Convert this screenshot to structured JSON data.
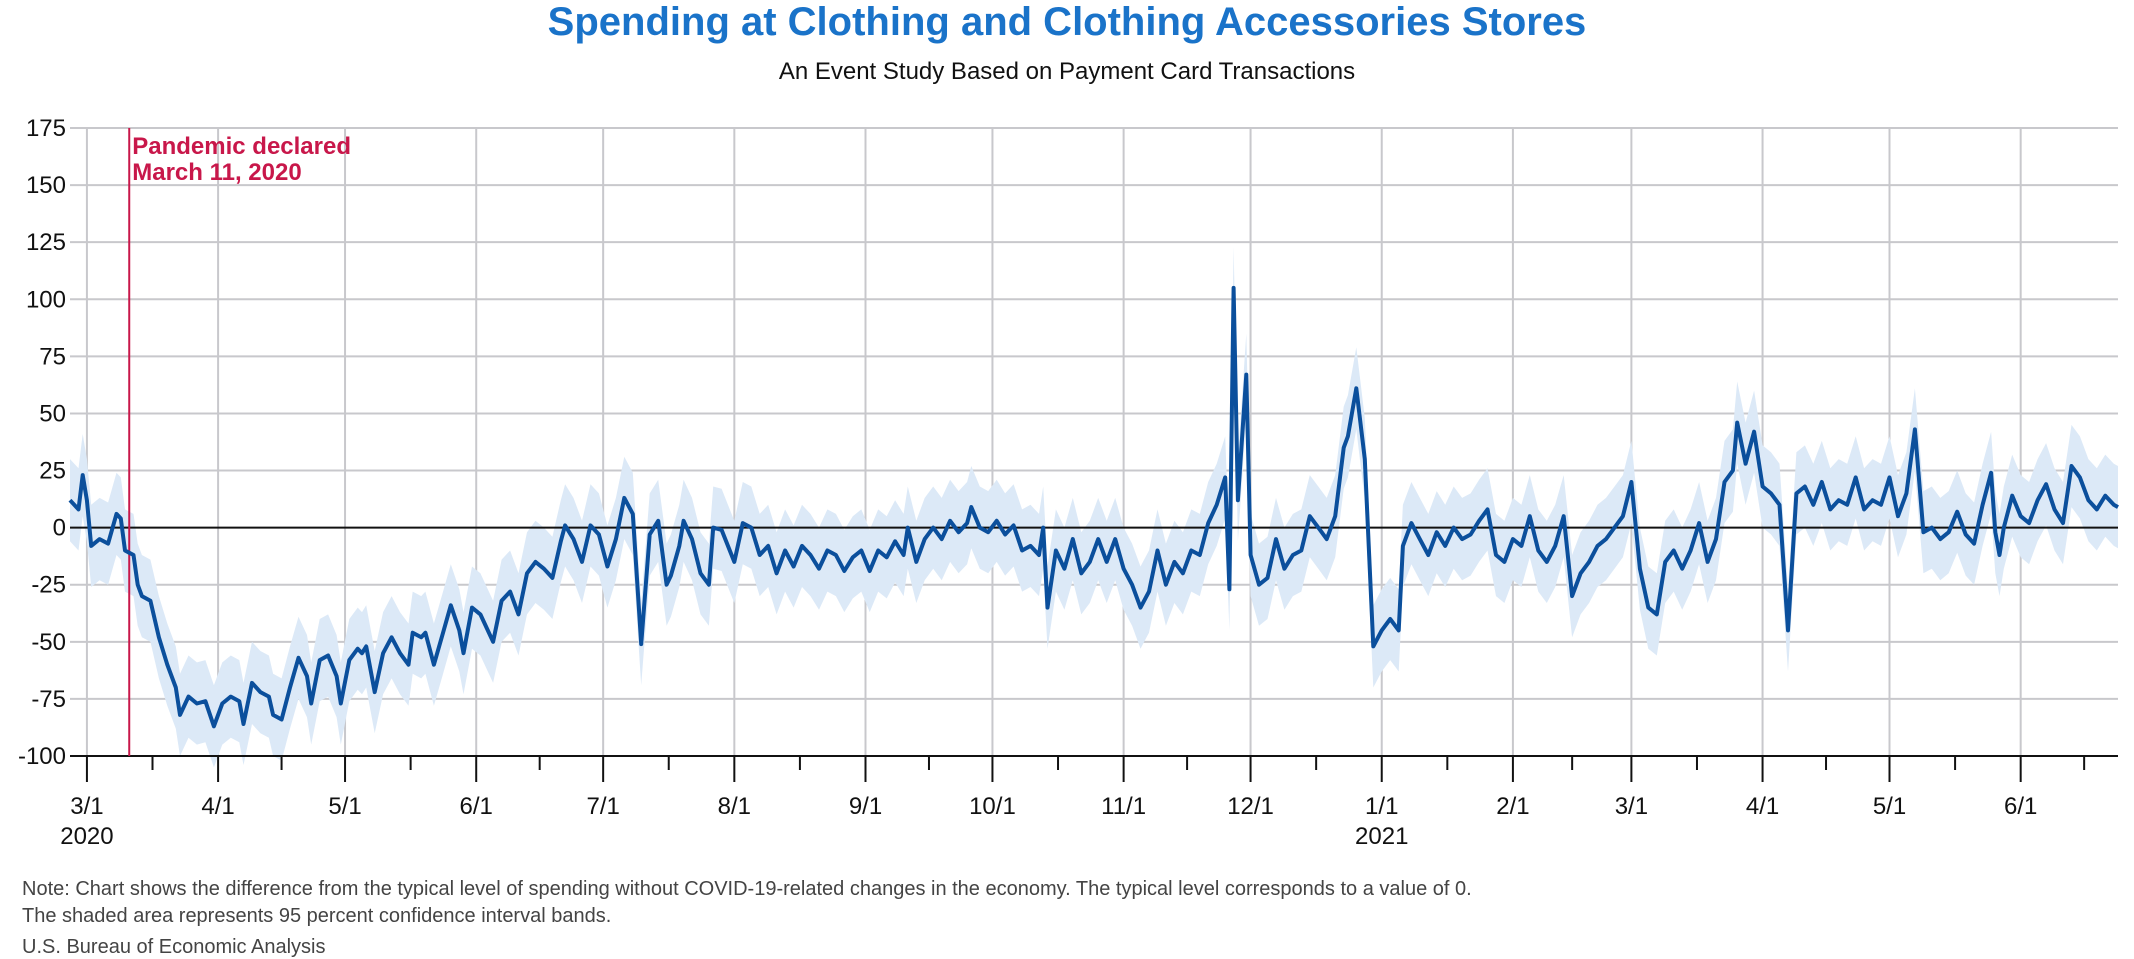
{
  "title": "Spending at Clothing and Clothing Accessories Stores",
  "subtitle": "An Event Study Based on Payment Card Transactions",
  "note_line1": "Note: Chart shows the difference from the typical level of spending without COVID-19-related changes in the economy. The typical level corresponds to a value of 0.",
  "note_line2": "The shaded area represents 95 percent confidence interval bands.",
  "source": "U.S. Bureau of Economic Analysis",
  "colors": {
    "line": "#0b4f9c",
    "band": "#dce9f7",
    "event": "#c8174a",
    "grid": "#c8c8cc",
    "title": "#1a73c9"
  },
  "chart_data": {
    "type": "line",
    "ylim": [
      -100,
      175
    ],
    "yticks": [
      175,
      150,
      125,
      100,
      75,
      50,
      25,
      0,
      -25,
      -50,
      -75,
      -100
    ],
    "x_range": [
      "2020-02-26",
      "2021-06-24"
    ],
    "xtick_labels": [
      {
        "date": "2020-03-01",
        "label": "3/1",
        "year": "2020"
      },
      {
        "date": "2020-04-01",
        "label": "4/1"
      },
      {
        "date": "2020-05-01",
        "label": "5/1"
      },
      {
        "date": "2020-06-01",
        "label": "6/1"
      },
      {
        "date": "2020-07-01",
        "label": "7/1"
      },
      {
        "date": "2020-08-01",
        "label": "8/1"
      },
      {
        "date": "2020-09-01",
        "label": "9/1"
      },
      {
        "date": "2020-10-01",
        "label": "10/1"
      },
      {
        "date": "2020-11-01",
        "label": "11/1"
      },
      {
        "date": "2020-12-01",
        "label": "12/1"
      },
      {
        "date": "2021-01-01",
        "label": "1/1",
        "year": "2021"
      },
      {
        "date": "2021-02-01",
        "label": "2/1"
      },
      {
        "date": "2021-03-01",
        "label": "3/1"
      },
      {
        "date": "2021-04-01",
        "label": "4/1"
      },
      {
        "date": "2021-05-01",
        "label": "5/1"
      },
      {
        "date": "2021-06-01",
        "label": "6/1"
      }
    ],
    "event": {
      "date": "2020-03-11",
      "label_line1": "Pandemic declared",
      "label_line2": "March 11, 2020"
    },
    "band_width": 18,
    "series": [
      {
        "points": [
          [
            "2020-02-26",
            12
          ],
          [
            "2020-02-28",
            8
          ],
          [
            "2020-02-29",
            23
          ],
          [
            "2020-03-01",
            12
          ],
          [
            "2020-03-02",
            -8
          ],
          [
            "2020-03-04",
            -5
          ],
          [
            "2020-03-06",
            -7
          ],
          [
            "2020-03-08",
            6
          ],
          [
            "2020-03-09",
            4
          ],
          [
            "2020-03-10",
            -10
          ],
          [
            "2020-03-12",
            -12
          ],
          [
            "2020-03-13",
            -25
          ],
          [
            "2020-03-14",
            -30
          ],
          [
            "2020-03-16",
            -32
          ],
          [
            "2020-03-18",
            -48
          ],
          [
            "2020-03-20",
            -60
          ],
          [
            "2020-03-22",
            -70
          ],
          [
            "2020-03-23",
            -82
          ],
          [
            "2020-03-25",
            -74
          ],
          [
            "2020-03-27",
            -77
          ],
          [
            "2020-03-29",
            -76
          ],
          [
            "2020-03-31",
            -87
          ],
          [
            "2020-04-02",
            -77
          ],
          [
            "2020-04-04",
            -74
          ],
          [
            "2020-04-06",
            -76
          ],
          [
            "2020-04-07",
            -86
          ],
          [
            "2020-04-09",
            -68
          ],
          [
            "2020-04-11",
            -72
          ],
          [
            "2020-04-13",
            -74
          ],
          [
            "2020-04-14",
            -82
          ],
          [
            "2020-04-16",
            -84
          ],
          [
            "2020-04-18",
            -70
          ],
          [
            "2020-04-20",
            -57
          ],
          [
            "2020-04-22",
            -65
          ],
          [
            "2020-04-23",
            -77
          ],
          [
            "2020-04-25",
            -58
          ],
          [
            "2020-04-27",
            -56
          ],
          [
            "2020-04-29",
            -65
          ],
          [
            "2020-04-30",
            -77
          ],
          [
            "2020-05-02",
            -58
          ],
          [
            "2020-05-04",
            -53
          ],
          [
            "2020-05-05",
            -55
          ],
          [
            "2020-05-06",
            -52
          ],
          [
            "2020-05-08",
            -72
          ],
          [
            "2020-05-10",
            -55
          ],
          [
            "2020-05-12",
            -48
          ],
          [
            "2020-05-14",
            -55
          ],
          [
            "2020-05-16",
            -60
          ],
          [
            "2020-05-17",
            -46
          ],
          [
            "2020-05-19",
            -48
          ],
          [
            "2020-05-20",
            -46
          ],
          [
            "2020-05-22",
            -60
          ],
          [
            "2020-05-24",
            -47
          ],
          [
            "2020-05-26",
            -34
          ],
          [
            "2020-05-28",
            -45
          ],
          [
            "2020-05-29",
            -55
          ],
          [
            "2020-05-31",
            -35
          ],
          [
            "2020-06-02",
            -38
          ],
          [
            "2020-06-05",
            -50
          ],
          [
            "2020-06-07",
            -32
          ],
          [
            "2020-06-09",
            -28
          ],
          [
            "2020-06-11",
            -38
          ],
          [
            "2020-06-13",
            -20
          ],
          [
            "2020-06-15",
            -15
          ],
          [
            "2020-06-17",
            -18
          ],
          [
            "2020-06-19",
            -22
          ],
          [
            "2020-06-21",
            -6
          ],
          [
            "2020-06-22",
            1
          ],
          [
            "2020-06-24",
            -5
          ],
          [
            "2020-06-26",
            -15
          ],
          [
            "2020-06-28",
            1
          ],
          [
            "2020-06-30",
            -3
          ],
          [
            "2020-07-02",
            -17
          ],
          [
            "2020-07-04",
            -5
          ],
          [
            "2020-07-06",
            13
          ],
          [
            "2020-07-08",
            6
          ],
          [
            "2020-07-10",
            -51
          ],
          [
            "2020-07-12",
            -3
          ],
          [
            "2020-07-14",
            3
          ],
          [
            "2020-07-16",
            -25
          ],
          [
            "2020-07-17",
            -21
          ],
          [
            "2020-07-19",
            -8
          ],
          [
            "2020-07-20",
            3
          ],
          [
            "2020-07-22",
            -5
          ],
          [
            "2020-07-24",
            -20
          ],
          [
            "2020-07-26",
            -25
          ],
          [
            "2020-07-27",
            0
          ],
          [
            "2020-07-29",
            -1
          ],
          [
            "2020-08-01",
            -15
          ],
          [
            "2020-08-03",
            2
          ],
          [
            "2020-08-05",
            0
          ],
          [
            "2020-08-07",
            -12
          ],
          [
            "2020-08-09",
            -8
          ],
          [
            "2020-08-11",
            -20
          ],
          [
            "2020-08-13",
            -10
          ],
          [
            "2020-08-15",
            -17
          ],
          [
            "2020-08-17",
            -8
          ],
          [
            "2020-08-19",
            -12
          ],
          [
            "2020-08-21",
            -18
          ],
          [
            "2020-08-23",
            -10
          ],
          [
            "2020-08-25",
            -12
          ],
          [
            "2020-08-27",
            -19
          ],
          [
            "2020-08-29",
            -13
          ],
          [
            "2020-08-31",
            -10
          ],
          [
            "2020-09-02",
            -19
          ],
          [
            "2020-09-04",
            -10
          ],
          [
            "2020-09-06",
            -13
          ],
          [
            "2020-09-08",
            -6
          ],
          [
            "2020-09-10",
            -12
          ],
          [
            "2020-09-11",
            0
          ],
          [
            "2020-09-13",
            -15
          ],
          [
            "2020-09-15",
            -5
          ],
          [
            "2020-09-17",
            0
          ],
          [
            "2020-09-19",
            -5
          ],
          [
            "2020-09-21",
            3
          ],
          [
            "2020-09-23",
            -2
          ],
          [
            "2020-09-25",
            2
          ],
          [
            "2020-09-26",
            9
          ],
          [
            "2020-09-28",
            0
          ],
          [
            "2020-09-30",
            -2
          ],
          [
            "2020-10-02",
            3
          ],
          [
            "2020-10-04",
            -3
          ],
          [
            "2020-10-06",
            1
          ],
          [
            "2020-10-08",
            -10
          ],
          [
            "2020-10-10",
            -8
          ],
          [
            "2020-10-12",
            -12
          ],
          [
            "2020-10-13",
            0
          ],
          [
            "2020-10-14",
            -35
          ],
          [
            "2020-10-16",
            -10
          ],
          [
            "2020-10-18",
            -18
          ],
          [
            "2020-10-20",
            -5
          ],
          [
            "2020-10-22",
            -20
          ],
          [
            "2020-10-24",
            -15
          ],
          [
            "2020-10-26",
            -5
          ],
          [
            "2020-10-28",
            -15
          ],
          [
            "2020-10-30",
            -5
          ],
          [
            "2020-11-01",
            -18
          ],
          [
            "2020-11-03",
            -25
          ],
          [
            "2020-11-05",
            -35
          ],
          [
            "2020-11-07",
            -28
          ],
          [
            "2020-11-09",
            -10
          ],
          [
            "2020-11-11",
            -25
          ],
          [
            "2020-11-13",
            -15
          ],
          [
            "2020-11-15",
            -20
          ],
          [
            "2020-11-17",
            -10
          ],
          [
            "2020-11-19",
            -12
          ],
          [
            "2020-11-21",
            2
          ],
          [
            "2020-11-23",
            10
          ],
          [
            "2020-11-25",
            22
          ],
          [
            "2020-11-26",
            -27
          ],
          [
            "2020-11-27",
            105
          ],
          [
            "2020-11-28",
            12
          ],
          [
            "2020-11-30",
            67
          ],
          [
            "2020-12-01",
            -12
          ],
          [
            "2020-12-03",
            -25
          ],
          [
            "2020-12-05",
            -22
          ],
          [
            "2020-12-07",
            -5
          ],
          [
            "2020-12-09",
            -18
          ],
          [
            "2020-12-11",
            -12
          ],
          [
            "2020-12-13",
            -10
          ],
          [
            "2020-12-15",
            5
          ],
          [
            "2020-12-17",
            0
          ],
          [
            "2020-12-19",
            -5
          ],
          [
            "2020-12-21",
            5
          ],
          [
            "2020-12-23",
            35
          ],
          [
            "2020-12-24",
            40
          ],
          [
            "2020-12-26",
            61
          ],
          [
            "2020-12-28",
            30
          ],
          [
            "2020-12-30",
            -52
          ],
          [
            "2021-01-01",
            -45
          ],
          [
            "2021-01-03",
            -40
          ],
          [
            "2021-01-05",
            -45
          ],
          [
            "2021-01-06",
            -8
          ],
          [
            "2021-01-08",
            2
          ],
          [
            "2021-01-10",
            -5
          ],
          [
            "2021-01-12",
            -12
          ],
          [
            "2021-01-14",
            -2
          ],
          [
            "2021-01-16",
            -8
          ],
          [
            "2021-01-18",
            0
          ],
          [
            "2021-01-20",
            -5
          ],
          [
            "2021-01-22",
            -3
          ],
          [
            "2021-01-24",
            3
          ],
          [
            "2021-01-26",
            8
          ],
          [
            "2021-01-28",
            -12
          ],
          [
            "2021-01-30",
            -15
          ],
          [
            "2021-02-01",
            -5
          ],
          [
            "2021-02-03",
            -8
          ],
          [
            "2021-02-05",
            5
          ],
          [
            "2021-02-07",
            -10
          ],
          [
            "2021-02-09",
            -15
          ],
          [
            "2021-02-11",
            -8
          ],
          [
            "2021-02-13",
            5
          ],
          [
            "2021-02-15",
            -30
          ],
          [
            "2021-02-17",
            -20
          ],
          [
            "2021-02-19",
            -15
          ],
          [
            "2021-02-21",
            -8
          ],
          [
            "2021-02-23",
            -5
          ],
          [
            "2021-02-25",
            0
          ],
          [
            "2021-02-27",
            5
          ],
          [
            "2021-03-01",
            20
          ],
          [
            "2021-03-03",
            -18
          ],
          [
            "2021-03-05",
            -35
          ],
          [
            "2021-03-07",
            -38
          ],
          [
            "2021-03-09",
            -15
          ],
          [
            "2021-03-11",
            -10
          ],
          [
            "2021-03-13",
            -18
          ],
          [
            "2021-03-15",
            -10
          ],
          [
            "2021-03-17",
            2
          ],
          [
            "2021-03-19",
            -15
          ],
          [
            "2021-03-21",
            -5
          ],
          [
            "2021-03-23",
            20
          ],
          [
            "2021-03-25",
            25
          ],
          [
            "2021-03-26",
            46
          ],
          [
            "2021-03-28",
            28
          ],
          [
            "2021-03-30",
            42
          ],
          [
            "2021-04-01",
            18
          ],
          [
            "2021-04-03",
            15
          ],
          [
            "2021-04-05",
            10
          ],
          [
            "2021-04-07",
            -45
          ],
          [
            "2021-04-09",
            15
          ],
          [
            "2021-04-11",
            18
          ],
          [
            "2021-04-13",
            10
          ],
          [
            "2021-04-15",
            20
          ],
          [
            "2021-04-17",
            8
          ],
          [
            "2021-04-19",
            12
          ],
          [
            "2021-04-21",
            10
          ],
          [
            "2021-04-23",
            22
          ],
          [
            "2021-04-25",
            8
          ],
          [
            "2021-04-27",
            12
          ],
          [
            "2021-04-29",
            10
          ],
          [
            "2021-05-01",
            22
          ],
          [
            "2021-05-03",
            5
          ],
          [
            "2021-05-05",
            15
          ],
          [
            "2021-05-07",
            43
          ],
          [
            "2021-05-09",
            -2
          ],
          [
            "2021-05-11",
            0
          ],
          [
            "2021-05-13",
            -5
          ],
          [
            "2021-05-15",
            -2
          ],
          [
            "2021-05-17",
            7
          ],
          [
            "2021-05-19",
            -3
          ],
          [
            "2021-05-21",
            -7
          ],
          [
            "2021-05-23",
            10
          ],
          [
            "2021-05-25",
            24
          ],
          [
            "2021-05-26",
            -2
          ],
          [
            "2021-05-27",
            -12
          ],
          [
            "2021-05-28",
            0
          ],
          [
            "2021-05-30",
            14
          ],
          [
            "2021-06-01",
            5
          ],
          [
            "2021-06-03",
            2
          ],
          [
            "2021-06-05",
            12
          ],
          [
            "2021-06-07",
            19
          ],
          [
            "2021-06-09",
            8
          ],
          [
            "2021-06-11",
            2
          ],
          [
            "2021-06-13",
            27
          ],
          [
            "2021-06-15",
            22
          ],
          [
            "2021-06-17",
            12
          ],
          [
            "2021-06-19",
            8
          ],
          [
            "2021-06-21",
            14
          ],
          [
            "2021-06-23",
            10
          ],
          [
            "2021-06-24",
            9
          ]
        ]
      }
    ]
  }
}
